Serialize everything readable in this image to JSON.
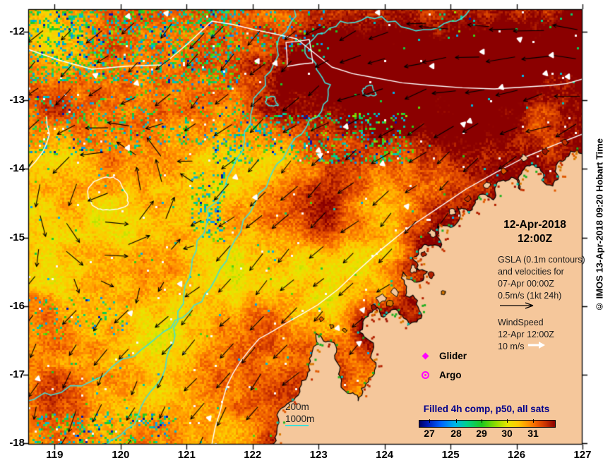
{
  "annotations": {
    "datetime": {
      "line1": "12-Apr-2018",
      "line2": "12:00Z"
    },
    "gsla": {
      "lines": [
        "GSLA (0.1m contours)",
        "and velocities for",
        "07-Apr 00:00Z",
        "0.5m/s (1kt 24h)"
      ]
    },
    "wind": {
      "lines": [
        "WindSpeed",
        "12-Apr 12:00Z",
        "10 m/s"
      ]
    },
    "markers": {
      "glider": "Glider",
      "argo": "Argo"
    },
    "bathy_legend": {
      "labels": [
        "200m",
        "1000m"
      ]
    },
    "credit": "© IMOS 13-Apr-2018 09:20 Hobart Time"
  },
  "colorbar": {
    "title": "Filled 4h comp, p50, all sats",
    "ticks": [
      "27",
      "28",
      "29",
      "30",
      "31"
    ],
    "tick_offsets": [
      15,
      53,
      89,
      125,
      162
    ],
    "gradient": [
      [
        0,
        "#000066"
      ],
      [
        0.06,
        "#0018B4"
      ],
      [
        0.16,
        "#0064FF"
      ],
      [
        0.26,
        "#00B4E8"
      ],
      [
        0.35,
        "#00D28C"
      ],
      [
        0.46,
        "#1EC81E"
      ],
      [
        0.56,
        "#8CDC00"
      ],
      [
        0.65,
        "#E6E600"
      ],
      [
        0.73,
        "#FFC800"
      ],
      [
        0.81,
        "#FF8C00"
      ],
      [
        0.87,
        "#EE5A00"
      ],
      [
        0.93,
        "#C83200"
      ],
      [
        1,
        "#8B0000"
      ]
    ]
  },
  "axes": {
    "x_ticks": [
      119,
      120,
      121,
      122,
      123,
      124,
      125,
      126,
      127
    ],
    "y_ticks": [
      -12,
      -13,
      -14,
      -15,
      -16,
      -17,
      -18
    ]
  },
  "chart_data": {
    "type": "heatmap",
    "title": "Filled 4h comp, p50, all sats",
    "xlim": [
      118.6,
      127.0
    ],
    "ylim": [
      -18.0,
      -11.67
    ],
    "x_ticks": [
      119,
      120,
      121,
      122,
      123,
      124,
      125,
      126,
      127
    ],
    "y_ticks": [
      -12,
      -13,
      -14,
      -15,
      -16,
      -17,
      -18
    ],
    "colorbar_ticks_degC": [
      27,
      28,
      29,
      30,
      31
    ],
    "valid_time": "12-Apr-2018 12:00Z",
    "gsla_legend": "GSLA (0.1m contours) and velocities for 07-Apr 00:00Z 0.5m/s (1kt 24h)",
    "wind_legend": "WindSpeed 12-Apr 12:00Z 10 m/s",
    "isobath_legend": [
      "200m",
      "1000m"
    ],
    "platform_legend": [
      "Glider",
      "Argo"
    ]
  },
  "colors": {
    "land": "#F5C79B",
    "coast": "#000000",
    "gsla_contour": "#FFFFFF",
    "bathy_contour": "#40E0D8",
    "current_arrow": "#000000",
    "wind_arrow": "#FFFFFF",
    "marker": "#FF00FF",
    "colorbar_title": "#00008B"
  }
}
